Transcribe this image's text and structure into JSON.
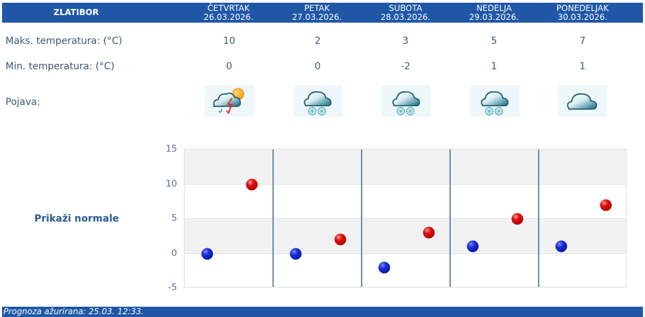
{
  "header": {
    "location": "ZLATIBOR",
    "days": [
      {
        "name": "ČETVRTAK",
        "date": "26.03.2026."
      },
      {
        "name": "PETAK",
        "date": "27.03.2026."
      },
      {
        "name": "SUBOTA",
        "date": "28.03.2026."
      },
      {
        "name": "NEDELJA",
        "date": "29.03.2026."
      },
      {
        "name": "PONEDELJAK",
        "date": "30.03.2026."
      }
    ]
  },
  "rows": {
    "max_label": "Maks. temperatura: (°C)",
    "min_label": "Min. temperatura: (°C)",
    "phenomenon_label": "Pojava:",
    "max_values": [
      "10",
      "2",
      "3",
      "5",
      "7"
    ],
    "min_values": [
      "0",
      "0",
      "-2",
      "1",
      "1"
    ],
    "icons": [
      "cloud-sun-thunder-rain-icon",
      "cloud-snow-icon",
      "cloud-snow-icon",
      "cloud-snow-icon",
      "cloud-icon"
    ]
  },
  "normals_link": "Prikaži normale",
  "footer": {
    "text": "Prognoza ažurirana:  25.03. 12:33."
  },
  "colors": {
    "header_bg": "#1f57a6",
    "min_dot": "#1d2fd8",
    "max_dot": "#e01212",
    "divider": "#6f8aa6"
  },
  "chart_data": {
    "type": "scatter",
    "categories": [
      "26.03.2026.",
      "27.03.2026.",
      "28.03.2026.",
      "29.03.2026.",
      "30.03.2026."
    ],
    "series": [
      {
        "name": "Min. temperatura",
        "color": "#1d2fd8",
        "values": [
          0,
          0,
          -2,
          1,
          1
        ]
      },
      {
        "name": "Maks. temperatura",
        "color": "#e01212",
        "values": [
          10,
          2,
          3,
          5,
          7
        ]
      }
    ],
    "yticks": [
      "15",
      "10",
      "5",
      "0",
      "-5"
    ],
    "ylim": [
      -5,
      15
    ],
    "grid": true,
    "title": "",
    "xlabel": "",
    "ylabel": ""
  }
}
